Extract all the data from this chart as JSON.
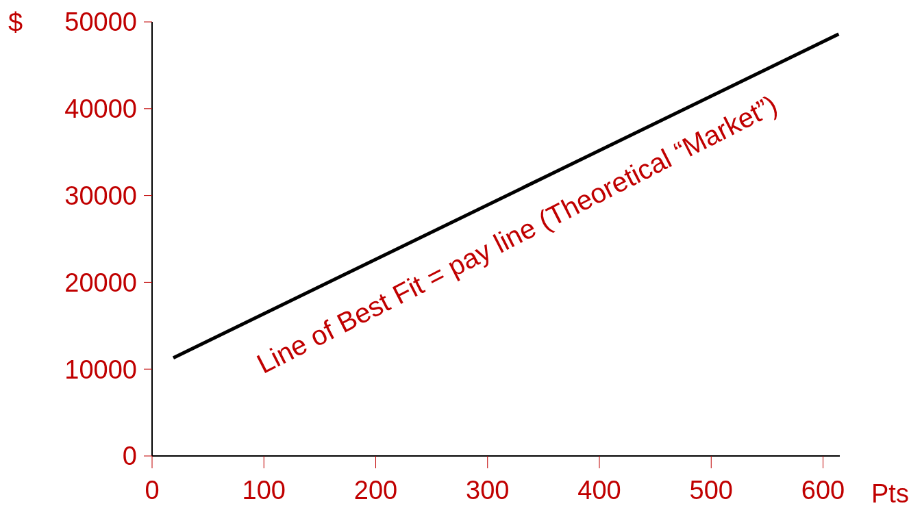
{
  "chart_data": {
    "type": "line",
    "ylabel": "$",
    "xlabel": "Pts",
    "x": [
      19,
      614
    ],
    "series": [
      {
        "color": "#000000",
        "values": [
          11300,
          48600
        ]
      }
    ],
    "xlim": [
      0,
      615
    ],
    "xticks": [
      0,
      100,
      200,
      300,
      400,
      500,
      600
    ],
    "ylim": [
      0,
      50000
    ],
    "yticks": [
      0,
      10000,
      20000,
      30000,
      40000,
      50000
    ],
    "annotations": [
      "Line of Best Fit = pay line (Theoretical “Market”)"
    ],
    "grid": false,
    "legend": false,
    "marker": "none",
    "line_style": "solid"
  }
}
